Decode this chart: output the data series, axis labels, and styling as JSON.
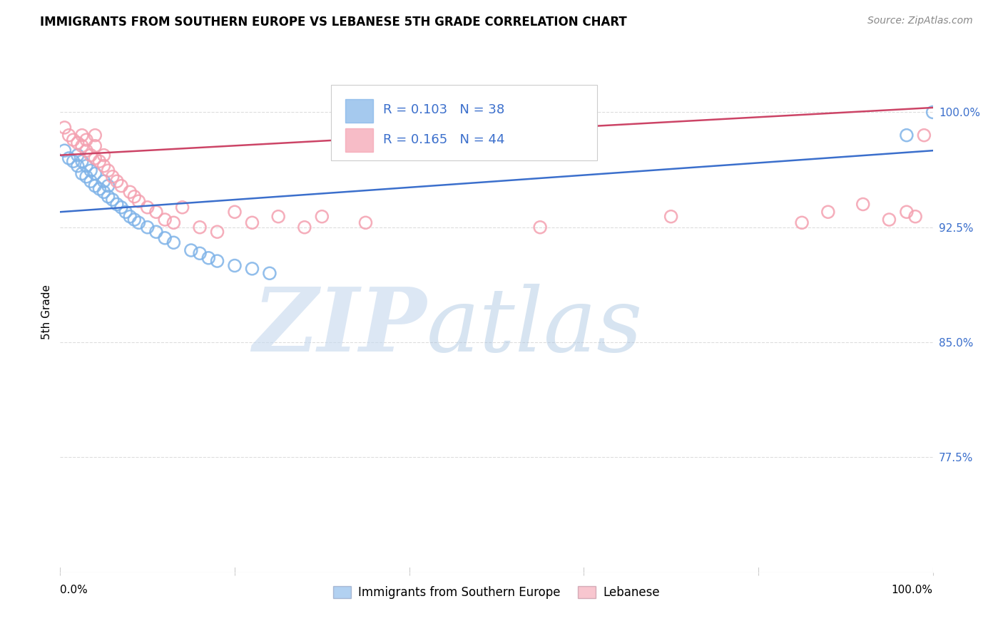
{
  "title": "IMMIGRANTS FROM SOUTHERN EUROPE VS LEBANESE 5TH GRADE CORRELATION CHART",
  "source": "Source: ZipAtlas.com",
  "ylabel": "5th Grade",
  "blue_R": 0.103,
  "blue_N": 38,
  "pink_R": 0.165,
  "pink_N": 44,
  "blue_color": "#7FB3E8",
  "pink_color": "#F4A0B0",
  "blue_line_color": "#3B6FCC",
  "pink_line_color": "#CC4466",
  "ytick_labels": [
    "100.0%",
    "92.5%",
    "85.0%",
    "77.5%"
  ],
  "ytick_values": [
    1.0,
    0.925,
    0.85,
    0.775
  ],
  "ylim": [
    0.7,
    1.04
  ],
  "xlim": [
    0.0,
    1.0
  ],
  "blue_scatter_x": [
    0.005,
    0.01,
    0.015,
    0.02,
    0.02,
    0.025,
    0.025,
    0.03,
    0.03,
    0.035,
    0.035,
    0.04,
    0.04,
    0.045,
    0.05,
    0.05,
    0.055,
    0.055,
    0.06,
    0.065,
    0.07,
    0.075,
    0.08,
    0.085,
    0.09,
    0.1,
    0.11,
    0.12,
    0.13,
    0.15,
    0.16,
    0.17,
    0.18,
    0.2,
    0.22,
    0.24,
    0.97,
    1.0
  ],
  "blue_scatter_y": [
    0.975,
    0.97,
    0.968,
    0.965,
    0.972,
    0.96,
    0.968,
    0.958,
    0.965,
    0.955,
    0.962,
    0.952,
    0.96,
    0.95,
    0.948,
    0.955,
    0.945,
    0.952,
    0.943,
    0.94,
    0.938,
    0.935,
    0.932,
    0.93,
    0.928,
    0.925,
    0.922,
    0.918,
    0.915,
    0.91,
    0.908,
    0.905,
    0.903,
    0.9,
    0.898,
    0.895,
    0.985,
    1.0
  ],
  "pink_scatter_x": [
    0.005,
    0.01,
    0.015,
    0.02,
    0.025,
    0.025,
    0.03,
    0.03,
    0.035,
    0.04,
    0.04,
    0.04,
    0.045,
    0.05,
    0.05,
    0.055,
    0.06,
    0.065,
    0.07,
    0.08,
    0.085,
    0.09,
    0.1,
    0.11,
    0.12,
    0.13,
    0.14,
    0.16,
    0.18,
    0.2,
    0.22,
    0.25,
    0.28,
    0.3,
    0.35,
    0.55,
    0.7,
    0.85,
    0.88,
    0.92,
    0.95,
    0.97,
    0.98,
    0.99
  ],
  "pink_scatter_y": [
    0.99,
    0.985,
    0.982,
    0.98,
    0.978,
    0.985,
    0.975,
    0.982,
    0.972,
    0.97,
    0.978,
    0.985,
    0.968,
    0.965,
    0.972,
    0.962,
    0.958,
    0.955,
    0.952,
    0.948,
    0.945,
    0.942,
    0.938,
    0.935,
    0.93,
    0.928,
    0.938,
    0.925,
    0.922,
    0.935,
    0.928,
    0.932,
    0.925,
    0.932,
    0.928,
    0.925,
    0.932,
    0.928,
    0.935,
    0.94,
    0.93,
    0.935,
    0.932,
    0.985
  ],
  "background_color": "#FFFFFF",
  "grid_color": "#DDDDDD",
  "legend_blue_label": "Immigrants from Southern Europe",
  "legend_pink_label": "Lebanese"
}
